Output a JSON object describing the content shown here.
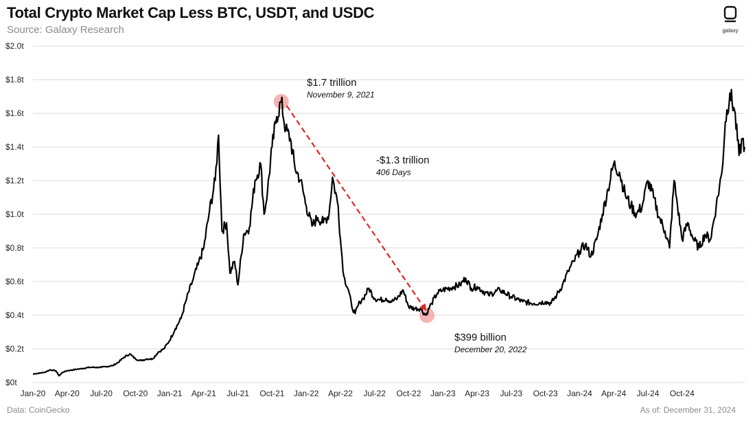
{
  "header": {
    "title": "Total Crypto Market Cap Less BTC, USDT, and USDC",
    "subtitle": "Source: Galaxy Research"
  },
  "logo": {
    "text": "galaxy",
    "icon": "galaxy-logo-icon"
  },
  "footer": {
    "source": "Data: CoinGecko",
    "as_of": "As of: December 31, 2024"
  },
  "chart_data": {
    "type": "line",
    "title": "Total Crypto Market Cap Less BTC, USDT, and USDC",
    "xlabel": "",
    "ylabel": "",
    "ylim": [
      0,
      2.0
    ],
    "y_unit": "trillion USD",
    "grid": true,
    "y_ticks": [
      {
        "value": 0,
        "label": "$0t"
      },
      {
        "value": 0.2,
        "label": "$0.2t"
      },
      {
        "value": 0.4,
        "label": "$0.4t"
      },
      {
        "value": 0.6,
        "label": "$0.6t"
      },
      {
        "value": 0.8,
        "label": "$0.8t"
      },
      {
        "value": 1.0,
        "label": "$1.0t"
      },
      {
        "value": 1.2,
        "label": "$1.2t"
      },
      {
        "value": 1.4,
        "label": "$1.4t"
      },
      {
        "value": 1.6,
        "label": "$1.6t"
      },
      {
        "value": 1.8,
        "label": "$1.8t"
      },
      {
        "value": 2.0,
        "label": "$2.0t"
      }
    ],
    "x_ticks": [
      "Jan-20",
      "Apr-20",
      "Jul-20",
      "Oct-20",
      "Jan-21",
      "Apr-21",
      "Jul-21",
      "Oct-21",
      "Jan-22",
      "Apr-22",
      "Jul-22",
      "Oct-22",
      "Jan-23",
      "Apr-23",
      "Jul-23",
      "Oct-23",
      "Jan-24",
      "Apr-24",
      "Jul-24",
      "Oct-24"
    ],
    "series": [
      {
        "name": "Total Crypto Market Cap Less BTC, USDT, and USDC",
        "color": "#000000",
        "points": [
          [
            0,
            0.05
          ],
          [
            1,
            0.06
          ],
          [
            1.5,
            0.075
          ],
          [
            2,
            0.07
          ],
          [
            2.3,
            0.04
          ],
          [
            2.6,
            0.06
          ],
          [
            3,
            0.07
          ],
          [
            4,
            0.08
          ],
          [
            5,
            0.09
          ],
          [
            6,
            0.09
          ],
          [
            7,
            0.1
          ],
          [
            7.5,
            0.12
          ],
          [
            8,
            0.15
          ],
          [
            8.5,
            0.17
          ],
          [
            9,
            0.14
          ],
          [
            9.5,
            0.13
          ],
          [
            10,
            0.14
          ],
          [
            10.5,
            0.14
          ],
          [
            11,
            0.18
          ],
          [
            11.5,
            0.2
          ],
          [
            12,
            0.25
          ],
          [
            12.5,
            0.32
          ],
          [
            13,
            0.38
          ],
          [
            13.5,
            0.5
          ],
          [
            14,
            0.6
          ],
          [
            14.5,
            0.7
          ],
          [
            15,
            0.8
          ],
          [
            15.5,
            1.02
          ],
          [
            16,
            1.2
          ],
          [
            16.3,
            1.47
          ],
          [
            16.6,
            0.9
          ],
          [
            17,
            0.95
          ],
          [
            17.3,
            0.65
          ],
          [
            17.7,
            0.72
          ],
          [
            18,
            0.58
          ],
          [
            18.5,
            0.88
          ],
          [
            19,
            0.92
          ],
          [
            19.5,
            1.2
          ],
          [
            20,
            1.3
          ],
          [
            20.3,
            1.0
          ],
          [
            20.6,
            1.14
          ],
          [
            21,
            1.4
          ],
          [
            21.4,
            1.58
          ],
          [
            21.8,
            1.67
          ],
          [
            22.2,
            1.5
          ],
          [
            22.6,
            1.45
          ],
          [
            23,
            1.28
          ],
          [
            23.5,
            1.2
          ],
          [
            24,
            1.05
          ],
          [
            24.5,
            0.93
          ],
          [
            25,
            0.98
          ],
          [
            25.5,
            0.95
          ],
          [
            26,
            1.0
          ],
          [
            26.3,
            1.22
          ],
          [
            26.8,
            1.05
          ],
          [
            27,
            0.85
          ],
          [
            27.3,
            0.63
          ],
          [
            27.7,
            0.55
          ],
          [
            28,
            0.45
          ],
          [
            28.3,
            0.41
          ],
          [
            28.7,
            0.48
          ],
          [
            29,
            0.5
          ],
          [
            29.5,
            0.56
          ],
          [
            30,
            0.5
          ],
          [
            30.5,
            0.49
          ],
          [
            31,
            0.5
          ],
          [
            31.5,
            0.48
          ],
          [
            32,
            0.5
          ],
          [
            32.5,
            0.55
          ],
          [
            33,
            0.45
          ],
          [
            33.5,
            0.44
          ],
          [
            34,
            0.44
          ],
          [
            34.5,
            0.4
          ],
          [
            35,
            0.47
          ],
          [
            35.5,
            0.53
          ],
          [
            36,
            0.55
          ],
          [
            37,
            0.57
          ],
          [
            37.5,
            0.58
          ],
          [
            38,
            0.62
          ],
          [
            38.5,
            0.56
          ],
          [
            39,
            0.57
          ],
          [
            40,
            0.52
          ],
          [
            41,
            0.55
          ],
          [
            42,
            0.51
          ],
          [
            43,
            0.48
          ],
          [
            44,
            0.47
          ],
          [
            45,
            0.48
          ],
          [
            45.5,
            0.47
          ],
          [
            46,
            0.52
          ],
          [
            46.5,
            0.58
          ],
          [
            47,
            0.66
          ],
          [
            47.5,
            0.72
          ],
          [
            48,
            0.78
          ],
          [
            48.5,
            0.82
          ],
          [
            49,
            0.75
          ],
          [
            49.5,
            0.85
          ],
          [
            50,
            1.0
          ],
          [
            50.5,
            1.15
          ],
          [
            51,
            1.3
          ],
          [
            51.5,
            1.25
          ],
          [
            52,
            1.12
          ],
          [
            52.5,
            1.05
          ],
          [
            53,
            1.0
          ],
          [
            53.5,
            1.05
          ],
          [
            54,
            1.2
          ],
          [
            54.5,
            1.1
          ],
          [
            55,
            0.98
          ],
          [
            55.5,
            0.9
          ],
          [
            55.9,
            0.8
          ],
          [
            56.3,
            1.2
          ],
          [
            56.6,
            1.05
          ],
          [
            57,
            0.85
          ],
          [
            57.5,
            0.95
          ],
          [
            58,
            0.85
          ],
          [
            58.5,
            0.8
          ],
          [
            59,
            0.88
          ],
          [
            59.5,
            0.85
          ],
          [
            60,
            1.05
          ],
          [
            60.5,
            1.25
          ],
          [
            60.8,
            1.55
          ],
          [
            61.2,
            1.72
          ],
          [
            61.6,
            1.62
          ],
          [
            62,
            1.35
          ],
          [
            62.3,
            1.45
          ],
          [
            62.5,
            1.4
          ]
        ]
      }
    ],
    "annotations": [
      {
        "id": "peak",
        "x": 21.8,
        "y": 1.67,
        "label": "$1.7 trillion",
        "sublabel": "November 9, 2021"
      },
      {
        "id": "trough",
        "x": 34.6,
        "y": 0.399,
        "label": "$399 billion",
        "sublabel": "December 20, 2022"
      },
      {
        "id": "drawdown",
        "label": "-$1.3 trillion",
        "sublabel": "406 Days"
      }
    ],
    "arrow": {
      "from": [
        21.8,
        1.67
      ],
      "to": [
        34.6,
        0.399
      ],
      "color": "#e02424",
      "style": "dashed"
    },
    "highlight_color": "#f4a6a6"
  }
}
